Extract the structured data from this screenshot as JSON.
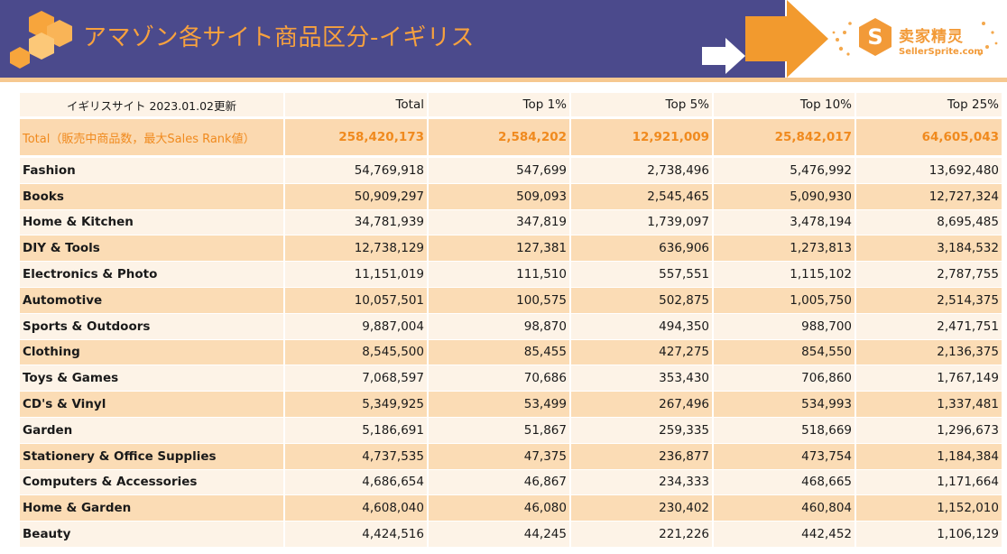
{
  "header": {
    "title": "アマゾン各サイト商品区分-イギリス",
    "logo_icon": "hexagon-cluster-icon",
    "arrow_icons": [
      "white-arrow-icon",
      "orange-arrow-icon"
    ]
  },
  "brand": {
    "name_cn": "卖家精灵",
    "name_en": "SellerSprite.com",
    "icon": "sellersprite-s-logo-icon"
  },
  "table": {
    "columns": [
      "イギリスサイト 2023.01.02更新",
      "Total",
      "Top 1%",
      "Top 5%",
      "Top 10%",
      "Top 25%"
    ],
    "total_row": {
      "label": "Total（販売中商品数，最大Sales Rank値）",
      "values": [
        "258,420,173",
        "2,584,202",
        "12,921,009",
        "25,842,017",
        "64,605,043"
      ]
    },
    "rows": [
      {
        "label": "Fashion",
        "values": [
          "54,769,918",
          "547,699",
          "2,738,496",
          "5,476,992",
          "13,692,480"
        ]
      },
      {
        "label": "Books",
        "values": [
          "50,909,297",
          "509,093",
          "2,545,465",
          "5,090,930",
          "12,727,324"
        ]
      },
      {
        "label": "Home & Kitchen",
        "values": [
          "34,781,939",
          "347,819",
          "1,739,097",
          "3,478,194",
          "8,695,485"
        ]
      },
      {
        "label": "DIY & Tools",
        "values": [
          "12,738,129",
          "127,381",
          "636,906",
          "1,273,813",
          "3,184,532"
        ]
      },
      {
        "label": "Electronics & Photo",
        "values": [
          "11,151,019",
          "111,510",
          "557,551",
          "1,115,102",
          "2,787,755"
        ]
      },
      {
        "label": "Automotive",
        "values": [
          "10,057,501",
          "100,575",
          "502,875",
          "1,005,750",
          "2,514,375"
        ]
      },
      {
        "label": "Sports & Outdoors",
        "values": [
          "9,887,004",
          "98,870",
          "494,350",
          "988,700",
          "2,471,751"
        ]
      },
      {
        "label": "Clothing",
        "values": [
          "8,545,500",
          "85,455",
          "427,275",
          "854,550",
          "2,136,375"
        ]
      },
      {
        "label": "Toys & Games",
        "values": [
          "7,068,597",
          "70,686",
          "353,430",
          "706,860",
          "1,767,149"
        ]
      },
      {
        "label": "CD's & Vinyl",
        "values": [
          "5,349,925",
          "53,499",
          "267,496",
          "534,993",
          "1,337,481"
        ]
      },
      {
        "label": "Garden",
        "values": [
          "5,186,691",
          "51,867",
          "259,335",
          "518,669",
          "1,296,673"
        ]
      },
      {
        "label": "Stationery & Office Supplies",
        "values": [
          "4,737,535",
          "47,375",
          "236,877",
          "473,754",
          "1,184,384"
        ]
      },
      {
        "label": "Computers & Accessories",
        "values": [
          "4,686,654",
          "46,867",
          "234,333",
          "468,665",
          "1,171,664"
        ]
      },
      {
        "label": "Home & Garden",
        "values": [
          "4,608,040",
          "46,080",
          "230,402",
          "460,804",
          "1,152,010"
        ]
      },
      {
        "label": "Beauty",
        "values": [
          "4,424,516",
          "44,245",
          "221,226",
          "442,452",
          "1,106,129"
        ]
      }
    ]
  },
  "colors": {
    "header_bg": "#4b4a8c",
    "accent_orange": "#f7a13e",
    "row_light": "#fdf3e7",
    "row_dark": "#fbdcb5",
    "total_text": "#f08a1e"
  }
}
